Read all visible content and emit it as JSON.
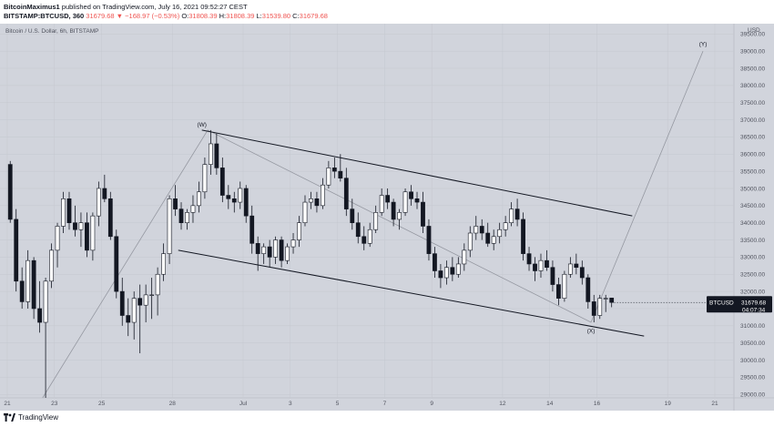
{
  "header": {
    "author": "BitcoinMaximus1",
    "published_text": "published on TradingView.com, July 16, 2021 09:52:27 CEST",
    "symbol": "BITSTAMP:BTCUSD, 360",
    "change": "31679.68 ▼ −168.97 (−0.53%)",
    "o_label": "O:",
    "o_value": "31808.39",
    "h_label": "H:",
    "h_value": "31808.39",
    "l_label": "L:",
    "l_value": "31539.80",
    "c_label": "C:",
    "c_value": "31679.68"
  },
  "pane_title": "Bitcoin / U.S. Dollar, 6h, BITSTAMP",
  "price_tag": {
    "symbol": "BTCUSD",
    "price": "31679.68",
    "countdown": "04:07:34"
  },
  "footer": {
    "logo_text": "TradingView"
  },
  "colors": {
    "background": "#d1d4dc",
    "up": "#ffffff",
    "down": "#131722",
    "line": "#131722",
    "projection": "#9598a1"
  },
  "chart_data": {
    "type": "candlestick",
    "title": "Bitcoin / U.S. Dollar, 6h, BITSTAMP",
    "ylabel": "USD",
    "ylim": [
      28900,
      39800
    ],
    "y_ticks": [
      29000,
      29500,
      30000,
      30500,
      31000,
      31500,
      32000,
      32500,
      33000,
      33500,
      34000,
      34500,
      35000,
      35500,
      36000,
      36500,
      37000,
      37500,
      38000,
      38500,
      39000,
      39500
    ],
    "x_ticks": [
      "21",
      "23",
      "25",
      "28",
      "Jul",
      "3",
      "5",
      "7",
      "9",
      "12",
      "14",
      "16",
      "19",
      "21"
    ],
    "x_tick_dates": [
      "2021-06-21",
      "2021-06-23",
      "2021-06-25",
      "2021-06-28",
      "2021-07-01",
      "2021-07-03",
      "2021-07-05",
      "2021-07-07",
      "2021-07-09",
      "2021-07-12",
      "2021-07-14",
      "2021-07-16",
      "2021-07-19",
      "2021-07-21"
    ],
    "candles": [
      {
        "t": "2021-06-21 00:00",
        "o": 35700,
        "h": 35800,
        "l": 34000,
        "c": 34100
      },
      {
        "t": "2021-06-21 06:00",
        "o": 34100,
        "h": 34400,
        "l": 32000,
        "c": 32300
      },
      {
        "t": "2021-06-21 12:00",
        "o": 32300,
        "h": 32700,
        "l": 31500,
        "c": 31700
      },
      {
        "t": "2021-06-21 18:00",
        "o": 31700,
        "h": 33200,
        "l": 31500,
        "c": 32900
      },
      {
        "t": "2021-06-22 00:00",
        "o": 32900,
        "h": 33000,
        "l": 31200,
        "c": 31500
      },
      {
        "t": "2021-06-22 06:00",
        "o": 31500,
        "h": 32300,
        "l": 30800,
        "c": 31100
      },
      {
        "t": "2021-06-22 12:00",
        "o": 31100,
        "h": 32400,
        "l": 28900,
        "c": 32300
      },
      {
        "t": "2021-06-22 18:00",
        "o": 32300,
        "h": 33400,
        "l": 32100,
        "c": 33200
      },
      {
        "t": "2021-06-23 00:00",
        "o": 33200,
        "h": 34000,
        "l": 32700,
        "c": 33900
      },
      {
        "t": "2021-06-23 06:00",
        "o": 33900,
        "h": 34900,
        "l": 33700,
        "c": 34700
      },
      {
        "t": "2021-06-23 12:00",
        "o": 34700,
        "h": 34900,
        "l": 33800,
        "c": 34000
      },
      {
        "t": "2021-06-23 18:00",
        "o": 34000,
        "h": 34500,
        "l": 33600,
        "c": 33800
      },
      {
        "t": "2021-06-24 00:00",
        "o": 33800,
        "h": 34300,
        "l": 33300,
        "c": 34000
      },
      {
        "t": "2021-06-24 06:00",
        "o": 34000,
        "h": 34300,
        "l": 33000,
        "c": 33200
      },
      {
        "t": "2021-06-24 12:00",
        "o": 33200,
        "h": 34300,
        "l": 32900,
        "c": 34200
      },
      {
        "t": "2021-06-24 18:00",
        "o": 34200,
        "h": 35200,
        "l": 33900,
        "c": 35000
      },
      {
        "t": "2021-06-25 00:00",
        "o": 35000,
        "h": 35400,
        "l": 34600,
        "c": 34700
      },
      {
        "t": "2021-06-25 06:00",
        "o": 34700,
        "h": 34900,
        "l": 33500,
        "c": 33600
      },
      {
        "t": "2021-06-25 12:00",
        "o": 33600,
        "h": 33800,
        "l": 31800,
        "c": 32000
      },
      {
        "t": "2021-06-25 18:00",
        "o": 32000,
        "h": 32400,
        "l": 31000,
        "c": 31300
      },
      {
        "t": "2021-06-26 00:00",
        "o": 31300,
        "h": 31800,
        "l": 30700,
        "c": 31100
      },
      {
        "t": "2021-06-26 06:00",
        "o": 31100,
        "h": 32000,
        "l": 30600,
        "c": 31800
      },
      {
        "t": "2021-06-26 12:00",
        "o": 31800,
        "h": 32200,
        "l": 30200,
        "c": 31600
      },
      {
        "t": "2021-06-26 18:00",
        "o": 31600,
        "h": 32200,
        "l": 31100,
        "c": 31900
      },
      {
        "t": "2021-06-27 00:00",
        "o": 31900,
        "h": 32400,
        "l": 31200,
        "c": 31900
      },
      {
        "t": "2021-06-27 06:00",
        "o": 31900,
        "h": 32700,
        "l": 31300,
        "c": 32500
      },
      {
        "t": "2021-06-27 12:00",
        "o": 32500,
        "h": 33400,
        "l": 32300,
        "c": 33100
      },
      {
        "t": "2021-06-27 18:00",
        "o": 33100,
        "h": 34800,
        "l": 32800,
        "c": 34700
      },
      {
        "t": "2021-06-28 00:00",
        "o": 34700,
        "h": 35100,
        "l": 34200,
        "c": 34400
      },
      {
        "t": "2021-06-28 06:00",
        "o": 34400,
        "h": 34600,
        "l": 33800,
        "c": 34000
      },
      {
        "t": "2021-06-28 12:00",
        "o": 34000,
        "h": 34400,
        "l": 33800,
        "c": 34300
      },
      {
        "t": "2021-06-28 18:00",
        "o": 34300,
        "h": 34800,
        "l": 34000,
        "c": 34500
      },
      {
        "t": "2021-06-29 00:00",
        "o": 34500,
        "h": 35200,
        "l": 34300,
        "c": 34900
      },
      {
        "t": "2021-06-29 06:00",
        "o": 34900,
        "h": 35900,
        "l": 34700,
        "c": 35700
      },
      {
        "t": "2021-06-29 12:00",
        "o": 35700,
        "h": 36700,
        "l": 35400,
        "c": 36300
      },
      {
        "t": "2021-06-29 18:00",
        "o": 36300,
        "h": 36600,
        "l": 35400,
        "c": 35600
      },
      {
        "t": "2021-06-30 00:00",
        "o": 35600,
        "h": 35900,
        "l": 34600,
        "c": 34800
      },
      {
        "t": "2021-06-30 06:00",
        "o": 34800,
        "h": 35100,
        "l": 34400,
        "c": 34700
      },
      {
        "t": "2021-06-30 12:00",
        "o": 34700,
        "h": 34900,
        "l": 34300,
        "c": 34600
      },
      {
        "t": "2021-06-30 18:00",
        "o": 34600,
        "h": 35200,
        "l": 34400,
        "c": 35000
      },
      {
        "t": "2021-07-01 00:00",
        "o": 35000,
        "h": 35100,
        "l": 34000,
        "c": 34200
      },
      {
        "t": "2021-07-01 06:00",
        "o": 34200,
        "h": 34500,
        "l": 33100,
        "c": 33400
      },
      {
        "t": "2021-07-01 12:00",
        "o": 33400,
        "h": 33600,
        "l": 32600,
        "c": 33100
      },
      {
        "t": "2021-07-01 18:00",
        "o": 33100,
        "h": 33400,
        "l": 32800,
        "c": 33300
      },
      {
        "t": "2021-07-02 00:00",
        "o": 33300,
        "h": 33500,
        "l": 32700,
        "c": 33000
      },
      {
        "t": "2021-07-02 06:00",
        "o": 33000,
        "h": 33600,
        "l": 32800,
        "c": 33500
      },
      {
        "t": "2021-07-02 12:00",
        "o": 33500,
        "h": 33600,
        "l": 32700,
        "c": 32900
      },
      {
        "t": "2021-07-02 18:00",
        "o": 32900,
        "h": 33400,
        "l": 32800,
        "c": 33300
      },
      {
        "t": "2021-07-03 00:00",
        "o": 33300,
        "h": 33700,
        "l": 33100,
        "c": 33500
      },
      {
        "t": "2021-07-03 06:00",
        "o": 33500,
        "h": 34200,
        "l": 33300,
        "c": 34000
      },
      {
        "t": "2021-07-03 12:00",
        "o": 34000,
        "h": 34800,
        "l": 33900,
        "c": 34600
      },
      {
        "t": "2021-07-03 18:00",
        "o": 34600,
        "h": 34900,
        "l": 34400,
        "c": 34700
      },
      {
        "t": "2021-07-04 00:00",
        "o": 34700,
        "h": 34900,
        "l": 34300,
        "c": 34500
      },
      {
        "t": "2021-07-04 06:00",
        "o": 34500,
        "h": 35300,
        "l": 34400,
        "c": 35100
      },
      {
        "t": "2021-07-04 12:00",
        "o": 35100,
        "h": 35800,
        "l": 35000,
        "c": 35600
      },
      {
        "t": "2021-07-04 18:00",
        "o": 35600,
        "h": 35900,
        "l": 35300,
        "c": 35500
      },
      {
        "t": "2021-07-05 00:00",
        "o": 35500,
        "h": 36000,
        "l": 35200,
        "c": 35300
      },
      {
        "t": "2021-07-05 06:00",
        "o": 35300,
        "h": 35600,
        "l": 34200,
        "c": 34400
      },
      {
        "t": "2021-07-05 12:00",
        "o": 34400,
        "h": 34700,
        "l": 33800,
        "c": 34000
      },
      {
        "t": "2021-07-05 18:00",
        "o": 34000,
        "h": 34300,
        "l": 33400,
        "c": 33600
      },
      {
        "t": "2021-07-06 00:00",
        "o": 33600,
        "h": 33900,
        "l": 33200,
        "c": 33400
      },
      {
        "t": "2021-07-06 06:00",
        "o": 33400,
        "h": 34000,
        "l": 33300,
        "c": 33800
      },
      {
        "t": "2021-07-06 12:00",
        "o": 33800,
        "h": 34500,
        "l": 33700,
        "c": 34300
      },
      {
        "t": "2021-07-06 18:00",
        "o": 34300,
        "h": 35000,
        "l": 34200,
        "c": 34800
      },
      {
        "t": "2021-07-07 00:00",
        "o": 34800,
        "h": 35000,
        "l": 34400,
        "c": 34600
      },
      {
        "t": "2021-07-07 06:00",
        "o": 34600,
        "h": 34700,
        "l": 33900,
        "c": 34100
      },
      {
        "t": "2021-07-07 12:00",
        "o": 34100,
        "h": 34400,
        "l": 33800,
        "c": 34300
      },
      {
        "t": "2021-07-07 18:00",
        "o": 34300,
        "h": 35000,
        "l": 34200,
        "c": 34900
      },
      {
        "t": "2021-07-08 00:00",
        "o": 34900,
        "h": 35100,
        "l": 34500,
        "c": 34700
      },
      {
        "t": "2021-07-08 06:00",
        "o": 34700,
        "h": 34900,
        "l": 34400,
        "c": 34600
      },
      {
        "t": "2021-07-08 12:00",
        "o": 34600,
        "h": 34900,
        "l": 33700,
        "c": 33900
      },
      {
        "t": "2021-07-08 18:00",
        "o": 33900,
        "h": 34100,
        "l": 32900,
        "c": 33100
      },
      {
        "t": "2021-07-09 00:00",
        "o": 33100,
        "h": 33300,
        "l": 32400,
        "c": 32600
      },
      {
        "t": "2021-07-09 06:00",
        "o": 32600,
        "h": 32800,
        "l": 32100,
        "c": 32400
      },
      {
        "t": "2021-07-09 12:00",
        "o": 32400,
        "h": 32900,
        "l": 32200,
        "c": 32700
      },
      {
        "t": "2021-07-09 18:00",
        "o": 32700,
        "h": 33000,
        "l": 32300,
        "c": 32500
      },
      {
        "t": "2021-07-10 00:00",
        "o": 32500,
        "h": 33000,
        "l": 32400,
        "c": 32800
      },
      {
        "t": "2021-07-10 06:00",
        "o": 32800,
        "h": 33400,
        "l": 32600,
        "c": 33200
      },
      {
        "t": "2021-07-10 12:00",
        "o": 33200,
        "h": 33900,
        "l": 33000,
        "c": 33700
      },
      {
        "t": "2021-07-10 18:00",
        "o": 33700,
        "h": 34200,
        "l": 33500,
        "c": 33900
      },
      {
        "t": "2021-07-11 00:00",
        "o": 33900,
        "h": 34100,
        "l": 33500,
        "c": 33700
      },
      {
        "t": "2021-07-11 06:00",
        "o": 33700,
        "h": 34000,
        "l": 33300,
        "c": 33400
      },
      {
        "t": "2021-07-11 12:00",
        "o": 33400,
        "h": 33800,
        "l": 33200,
        "c": 33600
      },
      {
        "t": "2021-07-11 18:00",
        "o": 33600,
        "h": 34000,
        "l": 33400,
        "c": 33800
      },
      {
        "t": "2021-07-12 00:00",
        "o": 33800,
        "h": 34200,
        "l": 33600,
        "c": 34000
      },
      {
        "t": "2021-07-12 06:00",
        "o": 34000,
        "h": 34600,
        "l": 33900,
        "c": 34400
      },
      {
        "t": "2021-07-12 12:00",
        "o": 34400,
        "h": 34700,
        "l": 33900,
        "c": 34100
      },
      {
        "t": "2021-07-12 18:00",
        "o": 34100,
        "h": 34300,
        "l": 32900,
        "c": 33100
      },
      {
        "t": "2021-07-13 00:00",
        "o": 33100,
        "h": 33300,
        "l": 32600,
        "c": 32800
      },
      {
        "t": "2021-07-13 06:00",
        "o": 32800,
        "h": 33000,
        "l": 32300,
        "c": 32600
      },
      {
        "t": "2021-07-13 12:00",
        "o": 32600,
        "h": 33100,
        "l": 32400,
        "c": 32900
      },
      {
        "t": "2021-07-13 18:00",
        "o": 32900,
        "h": 33200,
        "l": 32600,
        "c": 32700
      },
      {
        "t": "2021-07-14 00:00",
        "o": 32700,
        "h": 32900,
        "l": 32000,
        "c": 32200
      },
      {
        "t": "2021-07-14 06:00",
        "o": 32200,
        "h": 32400,
        "l": 31600,
        "c": 31800
      },
      {
        "t": "2021-07-14 12:00",
        "o": 31800,
        "h": 32600,
        "l": 31700,
        "c": 32500
      },
      {
        "t": "2021-07-14 18:00",
        "o": 32500,
        "h": 33000,
        "l": 32400,
        "c": 32800
      },
      {
        "t": "2021-07-15 00:00",
        "o": 32800,
        "h": 33100,
        "l": 32500,
        "c": 32700
      },
      {
        "t": "2021-07-15 06:00",
        "o": 32700,
        "h": 32900,
        "l": 32200,
        "c": 32400
      },
      {
        "t": "2021-07-15 12:00",
        "o": 32400,
        "h": 32500,
        "l": 31500,
        "c": 31700
      },
      {
        "t": "2021-07-15 18:00",
        "o": 31700,
        "h": 31900,
        "l": 31100,
        "c": 31300
      },
      {
        "t": "2021-07-16 00:00",
        "o": 31300,
        "h": 31900,
        "l": 31200,
        "c": 31800
      },
      {
        "t": "2021-07-16 06:00",
        "o": 31800,
        "h": 31900,
        "l": 31400,
        "c": 31800
      },
      {
        "t": "2021-07-16 12:00",
        "o": 31808.39,
        "h": 31808.39,
        "l": 31539.8,
        "c": 31679.68
      }
    ],
    "channel_upper": [
      {
        "x": "2021-06-29 06:00",
        "y": 36700
      },
      {
        "x": "2021-07-17 12:00",
        "y": 34200
      }
    ],
    "channel_lower": [
      {
        "x": "2021-06-28 06:00",
        "y": 33200
      },
      {
        "x": "2021-07-18 00:00",
        "y": 30700
      }
    ],
    "wave_path": [
      {
        "x": "2021-06-22 12:00",
        "y": 28900
      },
      {
        "x": "2021-06-29 12:00",
        "y": 36700
      },
      {
        "x": "2021-07-15 18:00",
        "y": 31100
      },
      {
        "x": "2021-07-20 12:00",
        "y": 39000
      }
    ],
    "wave_labels": [
      {
        "text": "(W)",
        "x": "2021-06-29 06:00",
        "y": 36800
      },
      {
        "text": "(X)",
        "x": "2021-07-15 18:00",
        "y": 30800
      },
      {
        "text": "(Y)",
        "x": "2021-07-20 12:00",
        "y": 39150
      }
    ],
    "last_price": 31679.68
  }
}
